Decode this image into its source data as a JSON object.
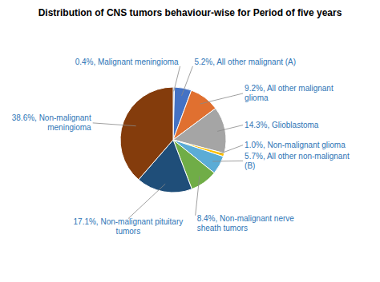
{
  "chart_data": {
    "type": "pie",
    "title": "Distribution of CNS tumors behaviour-wise for Period of five years",
    "categories": [
      "0.4%, Malignant meningioma",
      "5.2%, All other malignant (A)",
      "9.2%, All other malignant\nglioma",
      "14.3%, Glioblastoma",
      "1.0%, Non-malignant glioma",
      "5.7%, All other non-malignant\n(B)",
      "8.4%, Non-malignant nerve\nsheath tumors",
      "17.1%, Non-malignant pituitary\ntumors",
      "38.6%, Non-malignant\nmeningioma"
    ],
    "values": [
      0.4,
      5.2,
      9.2,
      14.3,
      1.0,
      5.7,
      8.4,
      17.1,
      38.6
    ],
    "colors": [
      "#4472c4",
      "#4472c4",
      "#e07030",
      "#a5a5a5",
      "#ffc000",
      "#5bacd6",
      "#70ad47",
      "#1f4e79",
      "#843c0c"
    ]
  }
}
